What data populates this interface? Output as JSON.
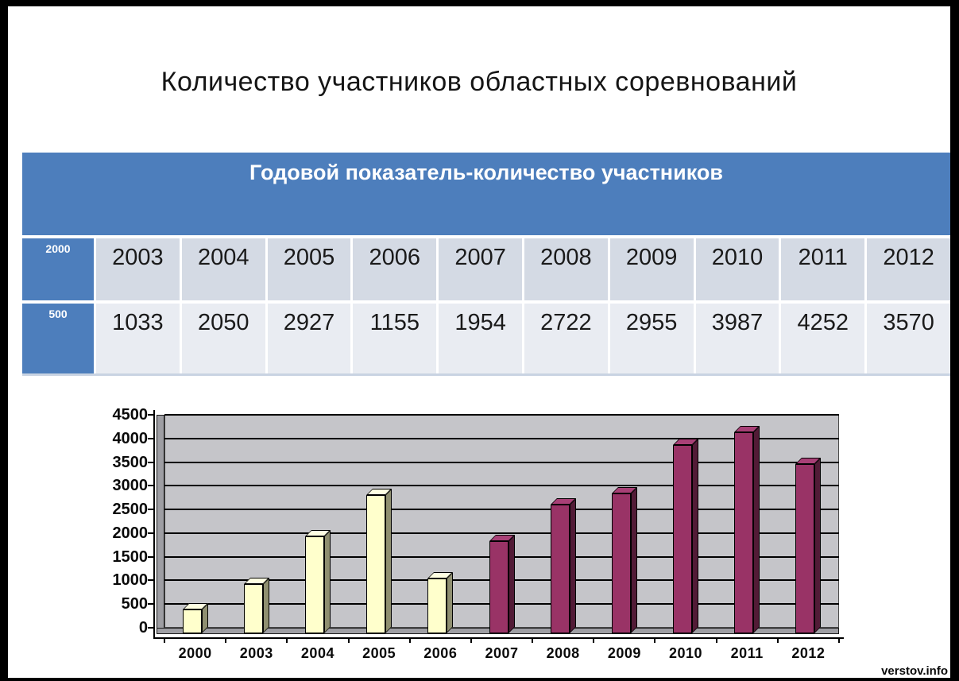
{
  "slide": {
    "title": "Количество участников областных соревнований",
    "watermark": "verstov.info"
  },
  "table": {
    "header": "Годовой показатель-количество участников",
    "left_labels": [
      "2000",
      "500"
    ],
    "years": [
      "2003",
      "2004",
      "2005",
      "2006",
      "2007",
      "2008",
      "2009",
      "2010",
      "2011",
      "2012"
    ],
    "values": [
      "1033",
      "2050",
      "2927",
      "1155",
      "1954",
      "2722",
      "2955",
      "3987",
      "4252",
      "3570"
    ]
  },
  "chart_data": {
    "type": "bar",
    "categories": [
      "2000",
      "2003",
      "2004",
      "2005",
      "2006",
      "2007",
      "2008",
      "2009",
      "2010",
      "2011",
      "2012"
    ],
    "values": [
      500,
      1033,
      2050,
      2927,
      1155,
      1954,
      2722,
      2955,
      3987,
      4252,
      3570
    ],
    "bar_series": [
      "cream",
      "cream",
      "cream",
      "cream",
      "cream",
      "magenta",
      "magenta",
      "magenta",
      "magenta",
      "magenta",
      "magenta"
    ],
    "series_styles": {
      "cream": {
        "front": "#ffffcc",
        "side": "#8f8f70",
        "top": "#ffffe2"
      },
      "magenta": {
        "front": "#993366",
        "side": "#521b36",
        "top": "#a84076"
      }
    },
    "title": "",
    "xlabel": "",
    "ylabel": "",
    "ylim": [
      0,
      4500
    ],
    "ytick_step": 500,
    "yticks": [
      "4500",
      "4000",
      "3500",
      "3000",
      "2500",
      "2000",
      "1500",
      "1000",
      "500",
      "0"
    ],
    "grid": "horizontal-only",
    "legend": "none",
    "plot_bg": "#c5c5c9",
    "style_3d": true
  },
  "colors": {
    "table_header_bg": "#4d7ebc",
    "row_header_bg": "#4d7ebc",
    "years_row_bg": "#d4dae4",
    "values_row_bg": "#e9ecf2",
    "bar_cream": "#ffffcc",
    "bar_magenta": "#993366",
    "plot_background": "#c5c5c9"
  }
}
